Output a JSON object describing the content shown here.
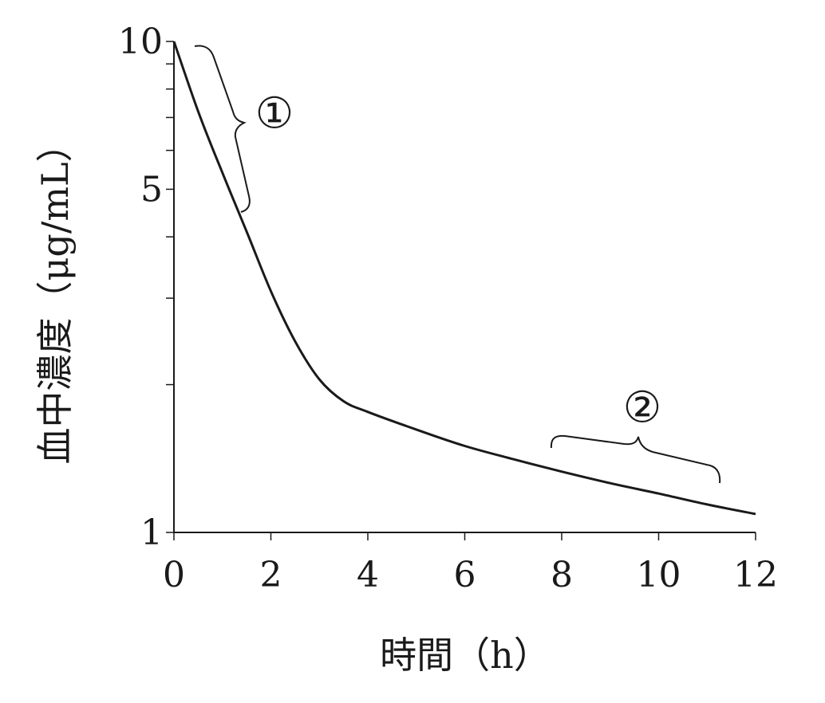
{
  "chart_data": {
    "type": "line",
    "title": "",
    "xlabel": "時間（h）",
    "ylabel": "血中濃度（μg/mL）",
    "y_scale": "log",
    "xlim": [
      0,
      12
    ],
    "ylim": [
      1,
      10
    ],
    "x_ticks": [
      0,
      2,
      4,
      6,
      8,
      10,
      12
    ],
    "x_tick_labels": [
      "0",
      "2",
      "4",
      "6",
      "8",
      "10",
      "12"
    ],
    "y_tick_values": [
      1,
      2,
      3,
      4,
      5,
      6,
      7,
      8,
      9,
      10
    ],
    "y_tick_labels": [
      "1",
      "5",
      "10"
    ],
    "grid": false,
    "legend": "none",
    "line_color": "#1a1a1a",
    "series": [
      {
        "x": [
          0,
          0.5,
          1,
          1.5,
          2,
          2.5,
          3,
          3.5,
          4,
          5,
          6,
          7,
          8,
          9,
          10,
          11,
          12
        ],
        "values": [
          10,
          7.2,
          5.4,
          4.1,
          3.1,
          2.45,
          2.05,
          1.85,
          1.76,
          1.62,
          1.5,
          1.41,
          1.33,
          1.26,
          1.2,
          1.14,
          1.09
        ]
      }
    ],
    "annotations": [
      {
        "label": "①",
        "x_range": [
          0.4,
          1.6
        ]
      },
      {
        "label": "②",
        "x_range": [
          7.8,
          11.3
        ]
      }
    ]
  }
}
